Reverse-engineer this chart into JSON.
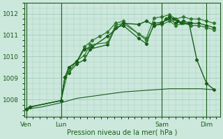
{
  "bg_color": "#cce8dc",
  "grid_color": "#a8cfc0",
  "line_color_dark": "#1a5c1a",
  "line_color_mid": "#2e7d2e",
  "xlabel": "Pression niveau de la mer( hPa )",
  "yticks": [
    1008,
    1009,
    1010,
    1011,
    1012
  ],
  "xtick_labels": [
    "Ven",
    "Lun",
    "Sam",
    "Dim"
  ],
  "xtick_positions": [
    0,
    18,
    70,
    93
  ],
  "xlim": [
    -1,
    100
  ],
  "ylim": [
    1007.2,
    1012.5
  ],
  "vlines": [
    0,
    18,
    70,
    93
  ],
  "s1_x": [
    0,
    2,
    18,
    20,
    22,
    26,
    30,
    33,
    42,
    46,
    50,
    58,
    62,
    66,
    70,
    74,
    77,
    81,
    85,
    89,
    93,
    97
  ],
  "s1_y": [
    1007.55,
    1007.65,
    1007.95,
    1009.05,
    1009.3,
    1009.8,
    1010.05,
    1010.55,
    1010.65,
    1011.45,
    1011.55,
    1011.05,
    1010.85,
    1011.8,
    1011.85,
    1011.95,
    1011.75,
    1011.85,
    1011.75,
    1011.75,
    1011.65,
    1011.55
  ],
  "s2_x": [
    0,
    2,
    18,
    20,
    22,
    26,
    30,
    33,
    42,
    46,
    50,
    58,
    62,
    66,
    70,
    74,
    77,
    81,
    85,
    89,
    93,
    97
  ],
  "s2_y": [
    1007.55,
    1007.65,
    1007.95,
    1009.05,
    1009.25,
    1009.65,
    1009.85,
    1010.35,
    1010.55,
    1011.35,
    1011.45,
    1010.85,
    1010.6,
    1011.55,
    1011.6,
    1011.75,
    1011.55,
    1011.65,
    1011.55,
    1011.55,
    1011.45,
    1011.35
  ],
  "s3_x": [
    18,
    22,
    26,
    30,
    34,
    38,
    42,
    46,
    50,
    58,
    62,
    66,
    70,
    74,
    77,
    81,
    85,
    89,
    93,
    97
  ],
  "s3_y": [
    1007.95,
    1009.5,
    1009.75,
    1010.45,
    1010.75,
    1010.95,
    1011.15,
    1011.55,
    1011.65,
    1011.05,
    1010.75,
    1011.45,
    1011.5,
    1011.65,
    1011.45,
    1011.55,
    1011.45,
    1011.45,
    1011.35,
    1011.25
  ],
  "s4_x": [
    0,
    8,
    18,
    26,
    34,
    42,
    50,
    58,
    66,
    74,
    82,
    90,
    97
  ],
  "s4_y": [
    1007.55,
    1007.65,
    1007.85,
    1008.05,
    1008.15,
    1008.25,
    1008.35,
    1008.4,
    1008.45,
    1008.5,
    1008.5,
    1008.5,
    1008.45
  ],
  "s5_x": [
    0,
    2,
    18,
    20,
    22,
    26,
    30,
    34,
    42,
    50,
    58,
    62,
    66,
    70,
    72,
    74,
    76,
    78,
    80,
    84,
    88,
    93,
    97
  ],
  "s5_y": [
    1007.55,
    1007.65,
    1007.95,
    1009.05,
    1009.5,
    1009.75,
    1010.35,
    1010.45,
    1010.95,
    1011.55,
    1011.5,
    1011.65,
    1011.45,
    1011.55,
    1011.75,
    1011.85,
    1011.75,
    1011.65,
    1011.55,
    1011.55,
    1009.85,
    1008.75,
    1008.45
  ]
}
